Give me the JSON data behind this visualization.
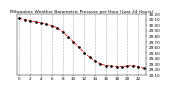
{
  "title": "Milwaukee Weather Barometric Pressure per Hour (Last 24 Hours)",
  "hours": [
    0,
    1,
    2,
    3,
    4,
    5,
    6,
    7,
    8,
    9,
    10,
    11,
    12,
    13,
    14,
    15,
    16,
    17,
    18,
    19,
    20,
    21,
    22,
    23
  ],
  "pressure": [
    30.12,
    30.1,
    30.08,
    30.06,
    30.04,
    30.02,
    29.99,
    29.95,
    29.88,
    29.79,
    29.7,
    29.6,
    29.5,
    29.42,
    29.35,
    29.3,
    29.27,
    29.26,
    29.25,
    29.25,
    29.26,
    29.27,
    29.25,
    29.22
  ],
  "line_color": "#ff0000",
  "marker_color": "#000000",
  "grid_color": "#999999",
  "bg_color": "#ffffff",
  "ylim_min": 29.1,
  "ylim_max": 30.2,
  "ytick_interval": 0.1,
  "title_fontsize": 3.2,
  "tick_fontsize": 3.0,
  "marker_size": 1.8,
  "line_width": 0.6,
  "dpi": 100
}
